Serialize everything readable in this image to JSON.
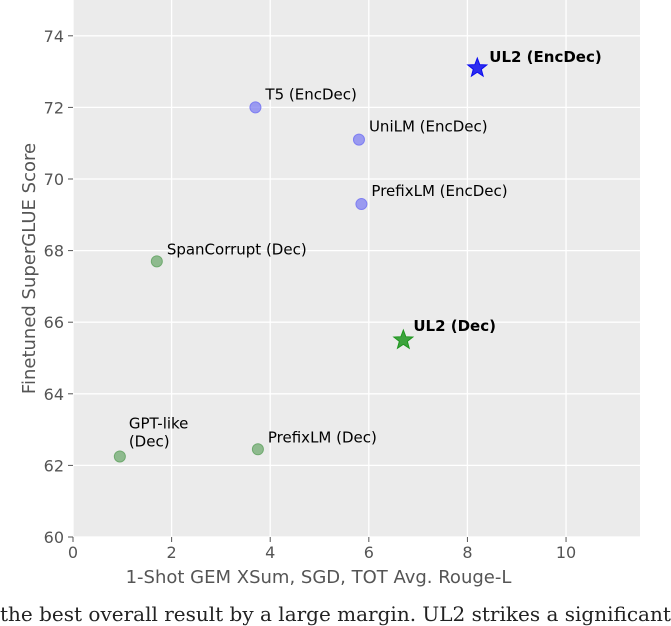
{
  "chart_data": {
    "type": "scatter",
    "title": "",
    "xlabel": "1-Shot GEM XSum, SGD, TOT Avg. Rouge-L",
    "ylabel": "Finetuned SuperGLUE Score",
    "xlim": [
      0,
      11.5
    ],
    "ylim": [
      60,
      75
    ],
    "xticks": [
      0,
      2,
      4,
      6,
      8,
      10
    ],
    "yticks": [
      60,
      62,
      64,
      66,
      68,
      70,
      72,
      74
    ],
    "grid": true,
    "background": "#ebebeb",
    "points": [
      {
        "name": "T5 (EncDec)",
        "x": 3.7,
        "y": 72.0,
        "marker": "circle",
        "color": "#7f7ff2",
        "bold": false
      },
      {
        "name": "UniLM (EncDec)",
        "x": 5.8,
        "y": 71.1,
        "marker": "circle",
        "color": "#7f7ff2",
        "bold": false
      },
      {
        "name": "PrefixLM (EncDec)",
        "x": 5.85,
        "y": 69.3,
        "marker": "circle",
        "color": "#7f7ff2",
        "bold": false
      },
      {
        "name": "UL2 (EncDec)",
        "x": 8.2,
        "y": 73.1,
        "marker": "star",
        "color": "#0b0bf0",
        "bold": true
      },
      {
        "name": "SpanCorrupt (Dec)",
        "x": 1.7,
        "y": 67.7,
        "marker": "circle",
        "color": "#6faa6f",
        "bold": false
      },
      {
        "name": "UL2 (Dec)",
        "x": 6.7,
        "y": 65.5,
        "marker": "star",
        "color": "#1e961e",
        "bold": true
      },
      {
        "name": "GPT-like (Dec)",
        "x": 0.95,
        "y": 62.25,
        "marker": "circle",
        "color": "#6faa6f",
        "bold": false,
        "label_lines": [
          "GPT-like",
          "(Dec)"
        ]
      },
      {
        "name": "PrefixLM (Dec)",
        "x": 3.75,
        "y": 62.45,
        "marker": "circle",
        "color": "#6faa6f",
        "bold": false
      }
    ]
  },
  "caption": "the best overall result by a large margin. UL2 strikes a significant"
}
